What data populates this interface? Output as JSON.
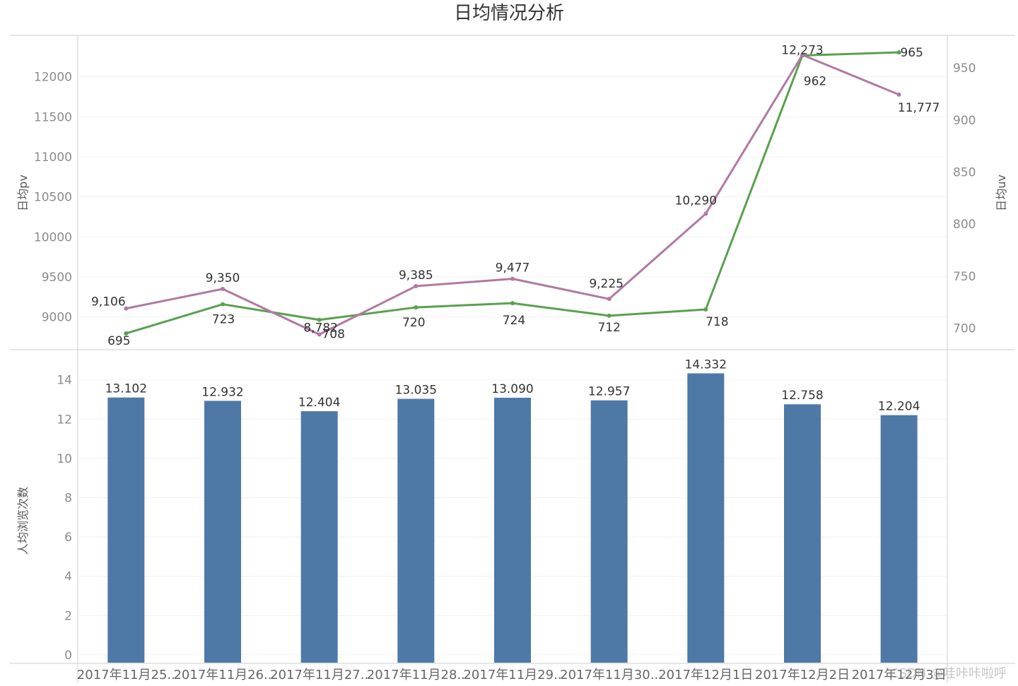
{
  "title": "日均情况分析",
  "watermark": "CSDN @哇咔咔啦呼",
  "colors": {
    "pv_line": "#B07AA1",
    "uv_line": "#59A14F",
    "bar": "#4E79A7",
    "grid": "#f0f0f0",
    "axis": "#cccccc"
  },
  "chart_data": [
    {
      "type": "line",
      "categories": [
        "2017年11月25..",
        "2017年11月26..",
        "2017年11月27..",
        "2017年11月28..",
        "2017年11月29..",
        "2017年11月30..",
        "2017年12月1日",
        "2017年12月2日",
        "2017年12月3日"
      ],
      "series": [
        {
          "name": "日均pv",
          "axis": "left",
          "values": [
            9106,
            9350,
            8782,
            9385,
            9477,
            9225,
            10290,
            12273,
            11777
          ],
          "labels": [
            "9,106",
            "9,350",
            "8,782",
            "9,385",
            "9,477",
            "9,225",
            "10,290",
            "12,273",
            "11,777"
          ]
        },
        {
          "name": "日均uv",
          "axis": "right",
          "values": [
            695,
            723,
            708,
            720,
            724,
            712,
            718,
            962,
            965
          ],
          "labels": [
            "695",
            "723",
            "708",
            "720",
            "724",
            "712",
            "718",
            "962",
            "965"
          ]
        }
      ],
      "ylabel_left": "日均pv",
      "ylabel_right": "日均uv",
      "ylim_left": [
        8600,
        12500
      ],
      "yticks_left": [
        9000,
        9500,
        10000,
        10500,
        11000,
        11500,
        12000
      ],
      "ylim_right": [
        680,
        980
      ],
      "yticks_right": [
        700,
        750,
        800,
        850,
        900,
        950
      ],
      "grid": true
    },
    {
      "type": "bar",
      "categories": [
        "2017年11月25..",
        "2017年11月26..",
        "2017年11月27..",
        "2017年11月28..",
        "2017年11月29..",
        "2017年11月30..",
        "2017年12月1日",
        "2017年12月2日",
        "2017年12月3日"
      ],
      "values": [
        13.102,
        12.932,
        12.404,
        13.035,
        13.09,
        12.957,
        14.332,
        12.758,
        12.204
      ],
      "labels": [
        "13.102",
        "12.932",
        "12.404",
        "13.035",
        "13.090",
        "12.957",
        "14.332",
        "12.758",
        "12.204"
      ],
      "ylabel": "人均浏览次数",
      "ylim": [
        -0.4,
        15.5
      ],
      "yticks": [
        0,
        2,
        4,
        6,
        8,
        10,
        12,
        14
      ],
      "grid": true
    }
  ]
}
